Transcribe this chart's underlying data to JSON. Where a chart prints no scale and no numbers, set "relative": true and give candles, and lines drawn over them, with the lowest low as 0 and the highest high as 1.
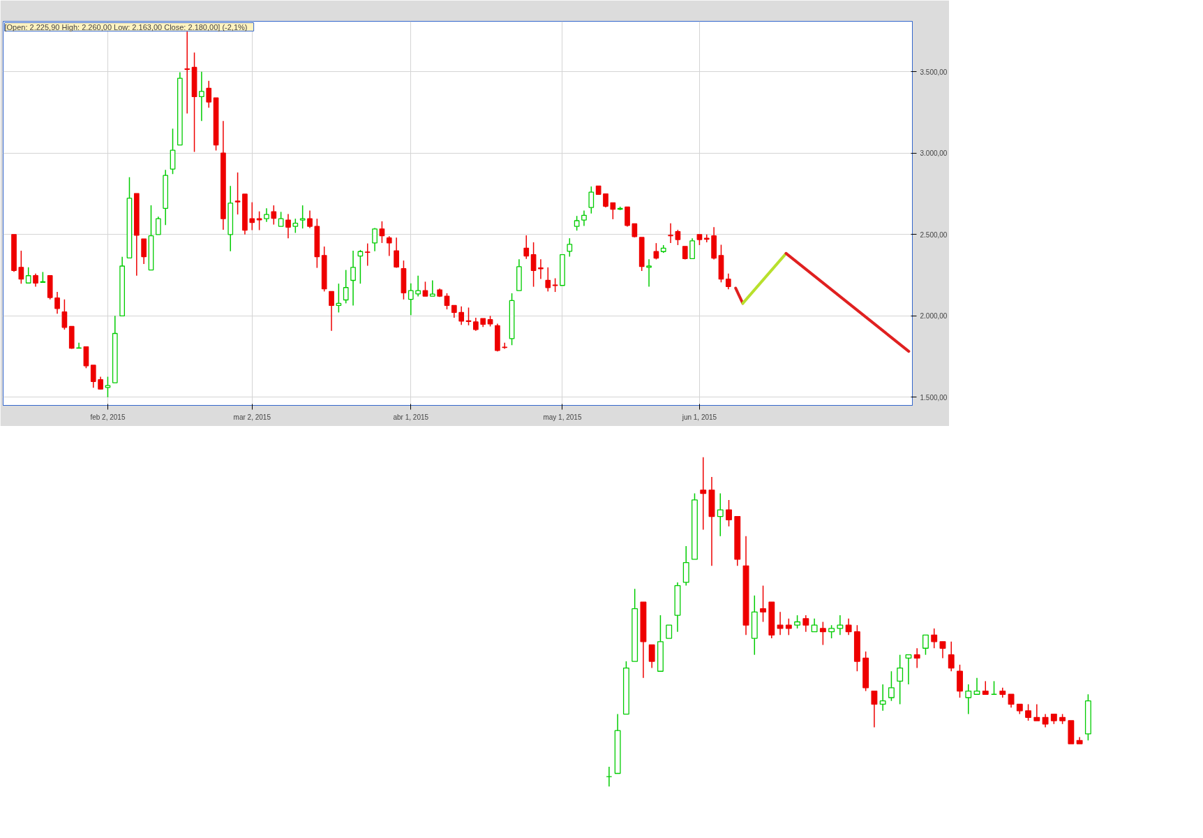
{
  "chart_data": [
    {
      "type": "candlestick",
      "annotations": [
        "[Open: 2.225,90  High: 2.260,00  Low: 2.163,00  Close: 2.180,00] (-2,1%)"
      ],
      "categories": [
        null,
        null,
        null,
        null,
        null,
        null,
        null,
        null,
        null,
        null,
        null,
        null,
        null,
        "feb 2, 2015",
        null,
        null,
        null,
        null,
        null,
        null,
        null,
        null,
        null,
        null,
        null,
        null,
        null,
        null,
        null,
        null,
        null,
        null,
        null,
        "mar 2, 2015",
        null,
        null,
        null,
        null,
        null,
        null,
        null,
        null,
        null,
        null,
        null,
        null,
        null,
        null,
        null,
        null,
        null,
        null,
        null,
        null,
        null,
        "abr 1, 2015",
        null,
        null,
        null,
        null,
        null,
        null,
        null,
        null,
        null,
        null,
        null,
        null,
        null,
        null,
        null,
        null,
        null,
        null,
        null,
        null,
        "may 1, 2015",
        null,
        null,
        null,
        null,
        null,
        null,
        null,
        null,
        null,
        null,
        null,
        null,
        null,
        null,
        null,
        null,
        null,
        null,
        "jun 1, 2015",
        null,
        null,
        null,
        null,
        null,
        null,
        null,
        null,
        null,
        null,
        null,
        null,
        null,
        null,
        null,
        null,
        null,
        null,
        null,
        null,
        null,
        null,
        null,
        null,
        null,
        null,
        null,
        null,
        null
      ],
      "ohlc": [
        [
          2500,
          2500,
          2271,
          2279
        ],
        [
          2298,
          2400,
          2198,
          2226
        ],
        [
          2202,
          2298,
          2202,
          2247
        ],
        [
          2247,
          2260,
          2179,
          2202
        ],
        [
          2206,
          2270,
          2206,
          2210
        ],
        [
          2247,
          2247,
          2101,
          2113
        ],
        [
          2110,
          2147,
          2013,
          2045
        ],
        [
          2024,
          2101,
          1916,
          1929
        ],
        [
          1935,
          1935,
          1798,
          1801
        ],
        [
          1801,
          1835,
          1801,
          1803
        ],
        [
          1810,
          1810,
          1678,
          1693
        ],
        [
          1697,
          1697,
          1558,
          1597
        ],
        [
          1608,
          1626,
          1550,
          1550
        ],
        [
          1560,
          1626,
          1500,
          1572
        ],
        [
          1589,
          2000,
          1589,
          1892
        ],
        [
          2000,
          2363,
          2000,
          2306
        ],
        [
          2356,
          2852,
          2356,
          2723
        ],
        [
          2752,
          2752,
          2247,
          2495
        ],
        [
          2473,
          2473,
          2319,
          2364
        ],
        [
          2282,
          2679,
          2282,
          2492
        ],
        [
          2500,
          2610,
          2500,
          2597
        ],
        [
          2661,
          2897,
          2558,
          2863
        ],
        [
          2902,
          3150,
          2871,
          3018
        ],
        [
          3050,
          3497,
          3050,
          3460
        ],
        [
          3518,
          3747,
          3244,
          3515
        ],
        [
          3527,
          3618,
          3008,
          3347
        ],
        [
          3347,
          3500,
          3198,
          3379
        ],
        [
          3398,
          3444,
          3279,
          3314
        ],
        [
          3339,
          3339,
          3016,
          3050
        ],
        [
          3000,
          3198,
          2529,
          2597
        ],
        [
          2500,
          2798,
          2397,
          2693
        ],
        [
          2705,
          2881,
          2623,
          2700
        ],
        [
          2748,
          2748,
          2500,
          2527
        ],
        [
          2597,
          2698,
          2527,
          2574
        ],
        [
          2597,
          2642,
          2527,
          2590
        ],
        [
          2597,
          2661,
          2577,
          2623
        ],
        [
          2640,
          2679,
          2561,
          2600
        ],
        [
          2550,
          2639,
          2550,
          2597
        ],
        [
          2589,
          2626,
          2477,
          2545
        ],
        [
          2550,
          2597,
          2510,
          2569
        ],
        [
          2589,
          2679,
          2537,
          2597
        ],
        [
          2597,
          2647,
          2540,
          2550
        ],
        [
          2550,
          2597,
          2295,
          2364
        ],
        [
          2371,
          2426,
          2150,
          2166
        ],
        [
          2150,
          2150,
          1908,
          2064
        ],
        [
          2064,
          2198,
          2021,
          2077
        ],
        [
          2098,
          2282,
          2077,
          2174
        ],
        [
          2218,
          2400,
          2064,
          2298
        ],
        [
          2368,
          2405,
          2198,
          2395
        ],
        [
          2392,
          2445,
          2308,
          2390
        ],
        [
          2448,
          2540,
          2397,
          2534
        ],
        [
          2534,
          2581,
          2448,
          2492
        ],
        [
          2479,
          2490,
          2368,
          2448
        ],
        [
          2400,
          2481,
          2295,
          2300
        ],
        [
          2290,
          2340,
          2101,
          2142
        ],
        [
          2102,
          2200,
          2005,
          2155
        ],
        [
          2135,
          2247,
          2119,
          2155
        ],
        [
          2155,
          2210,
          2121,
          2121
        ],
        [
          2121,
          2218,
          2121,
          2134
        ],
        [
          2160,
          2168,
          2116,
          2121
        ],
        [
          2121,
          2139,
          2040,
          2064
        ],
        [
          2064,
          2064,
          1989,
          2021
        ],
        [
          2021,
          2058,
          1945,
          1968
        ],
        [
          1970,
          2051,
          1942,
          1966
        ],
        [
          1963,
          1989,
          1908,
          1916
        ],
        [
          1984,
          1984,
          1932,
          1948
        ],
        [
          1977,
          2000,
          1935,
          1951
        ],
        [
          1940,
          1952,
          1782,
          1787
        ],
        [
          1808,
          1835,
          1798,
          1806
        ],
        [
          1860,
          2139,
          1820,
          2094
        ],
        [
          2155,
          2348,
          2155,
          2302
        ],
        [
          2416,
          2495,
          2350,
          2368
        ],
        [
          2376,
          2452,
          2179,
          2279
        ],
        [
          2295,
          2348,
          2227,
          2290
        ],
        [
          2218,
          2298,
          2150,
          2174
        ],
        [
          2190,
          2231,
          2147,
          2187
        ],
        [
          2187,
          2379,
          2187,
          2376
        ],
        [
          2397,
          2477,
          2364,
          2440
        ],
        [
          2550,
          2614,
          2524,
          2585
        ],
        [
          2589,
          2647,
          2553,
          2618
        ],
        [
          2666,
          2795,
          2629,
          2760
        ],
        [
          2798,
          2798,
          2747,
          2747
        ],
        [
          2750,
          2750,
          2666,
          2674
        ],
        [
          2695,
          2695,
          2594,
          2655
        ],
        [
          2655,
          2671,
          2650,
          2661
        ],
        [
          2669,
          2669,
          2548,
          2556
        ],
        [
          2566,
          2566,
          2482,
          2487
        ],
        [
          2482,
          2482,
          2276,
          2303
        ],
        [
          2298,
          2348,
          2179,
          2306
        ],
        [
          2395,
          2447,
          2347,
          2355
        ],
        [
          2395,
          2435,
          2387,
          2416
        ],
        [
          2495,
          2569,
          2448,
          2492
        ],
        [
          2518,
          2529,
          2435,
          2469
        ],
        [
          2427,
          2427,
          2347,
          2352
        ],
        [
          2352,
          2477,
          2352,
          2461
        ],
        [
          2500,
          2500,
          2435,
          2469
        ],
        [
          2477,
          2500,
          2452,
          2471
        ],
        [
          2492,
          2545,
          2347,
          2355
        ],
        [
          2371,
          2437,
          2206,
          2226
        ],
        [
          2225.9,
          2260,
          2163,
          2180
        ],
        null,
        null,
        null,
        null,
        null,
        null,
        null,
        null,
        null,
        null,
        null,
        null,
        null,
        null,
        null,
        null,
        null,
        null,
        null,
        null,
        null,
        null,
        null,
        null,
        null
      ],
      "colors": [
        "#ee0000",
        "#ee0000",
        "#00cc00",
        "#ee0000",
        "#00cc00",
        "#ee0000",
        "#ee0000",
        "#ee0000",
        "#ee0000",
        "#00cc00",
        "#ee0000",
        "#ee0000",
        "#ee0000",
        "#00cc00",
        "#00cc00",
        "#00cc00",
        "#00cc00",
        "#ee0000",
        "#ee0000",
        "#00cc00",
        "#00cc00",
        "#00cc00",
        "#00cc00",
        "#00cc00",
        "#ee0000",
        "#ee0000",
        "#00cc00",
        "#ee0000",
        "#ee0000",
        "#ee0000",
        "#00cc00",
        "#ee0000",
        "#ee0000",
        "#ee0000",
        "#ee0000",
        "#00cc00",
        "#ee0000",
        "#00cc00",
        "#ee0000",
        "#00cc00",
        "#00cc00",
        "#ee0000",
        "#ee0000",
        "#ee0000",
        "#ee0000",
        "#00cc00",
        "#00cc00",
        "#00cc00",
        "#00cc00",
        "#ee0000",
        "#00cc00",
        "#ee0000",
        "#ee0000",
        "#ee0000",
        "#ee0000",
        "#00cc00",
        "#00cc00",
        "#ee0000",
        "#00cc00",
        "#ee0000",
        "#ee0000",
        "#ee0000",
        "#ee0000",
        "#ee0000",
        "#ee0000",
        "#ee0000",
        "#ee0000",
        "#ee0000",
        "#ee0000",
        "#00cc00",
        "#00cc00",
        "#ee0000",
        "#ee0000",
        "#ee0000",
        "#ee0000",
        "#ee0000",
        "#00cc00",
        "#00cc00",
        "#00cc00",
        "#00cc00",
        "#00cc00",
        "#ee0000",
        "#ee0000",
        "#ee0000",
        "#00cc00",
        "#ee0000",
        "#ee0000",
        "#ee0000",
        "#00cc00",
        "#ee0000",
        "#00cc00",
        "#ee0000",
        "#ee0000",
        "#ee0000",
        "#00cc00",
        "#ee0000",
        "#ee0000",
        "#ee0000",
        "#ee0000",
        "#ee0000",
        null,
        null,
        null,
        null,
        null,
        null,
        null,
        null,
        null,
        null,
        null,
        null,
        null,
        null,
        null,
        null,
        null,
        null,
        null,
        null,
        null,
        null,
        null,
        null,
        null
      ],
      "series": [
        {
          "type": "line",
          "color": "#e02020",
          "values": [
            null,
            null,
            null,
            null,
            null,
            null,
            null,
            null,
            null,
            null,
            null,
            null,
            null,
            null,
            null,
            null,
            null,
            null,
            null,
            null,
            null,
            null,
            null,
            null,
            null,
            null,
            null,
            null,
            null,
            null,
            null,
            null,
            null,
            null,
            null,
            null,
            null,
            null,
            null,
            null,
            null,
            null,
            null,
            null,
            null,
            null,
            null,
            null,
            null,
            null,
            null,
            null,
            null,
            null,
            null,
            null,
            null,
            null,
            null,
            null,
            null,
            null,
            null,
            null,
            null,
            null,
            null,
            null,
            null,
            null,
            null,
            null,
            null,
            null,
            null,
            null,
            null,
            null,
            null,
            null,
            null,
            null,
            null,
            null,
            null,
            null,
            null,
            null,
            null,
            null,
            null,
            null,
            null,
            null,
            null,
            null,
            null,
            null,
            null,
            null,
            2171,
            2077,
            null,
            null,
            null,
            null,
            null,
            null,
            null,
            null,
            null,
            null,
            null,
            null,
            null,
            null,
            null,
            null,
            null,
            null,
            null,
            null,
            null,
            null,
            null
          ]
        },
        {
          "type": "line",
          "color": "#b8e02c",
          "values": [
            null,
            null,
            null,
            null,
            null,
            null,
            null,
            null,
            null,
            null,
            null,
            null,
            null,
            null,
            null,
            null,
            null,
            null,
            null,
            null,
            null,
            null,
            null,
            null,
            null,
            null,
            null,
            null,
            null,
            null,
            null,
            null,
            null,
            null,
            null,
            null,
            null,
            null,
            null,
            null,
            null,
            null,
            null,
            null,
            null,
            null,
            null,
            null,
            null,
            null,
            null,
            null,
            null,
            null,
            null,
            null,
            null,
            null,
            null,
            null,
            null,
            null,
            null,
            null,
            null,
            null,
            null,
            null,
            null,
            null,
            null,
            null,
            null,
            null,
            null,
            null,
            null,
            null,
            null,
            null,
            null,
            null,
            null,
            null,
            null,
            null,
            null,
            null,
            null,
            null,
            null,
            null,
            null,
            null,
            null,
            null,
            null,
            null,
            null,
            null,
            null,
            2077,
            null,
            null,
            null,
            null,
            null,
            2384,
            null,
            null,
            null,
            null,
            null,
            null,
            null,
            null,
            null,
            null,
            null,
            null,
            null,
            null,
            null,
            null,
            null
          ]
        },
        {
          "type": "line",
          "color": "#e02020",
          "values": [
            null,
            null,
            null,
            null,
            null,
            null,
            null,
            null,
            null,
            null,
            null,
            null,
            null,
            null,
            null,
            null,
            null,
            null,
            null,
            null,
            null,
            null,
            null,
            null,
            null,
            null,
            null,
            null,
            null,
            null,
            null,
            null,
            null,
            null,
            null,
            null,
            null,
            null,
            null,
            null,
            null,
            null,
            null,
            null,
            null,
            null,
            null,
            null,
            null,
            null,
            null,
            null,
            null,
            null,
            null,
            null,
            null,
            null,
            null,
            null,
            null,
            null,
            null,
            null,
            null,
            null,
            null,
            null,
            null,
            null,
            null,
            null,
            null,
            null,
            null,
            null,
            null,
            null,
            null,
            null,
            null,
            null,
            null,
            null,
            null,
            null,
            null,
            null,
            null,
            null,
            null,
            null,
            null,
            null,
            null,
            null,
            null,
            null,
            null,
            null,
            null,
            null,
            null,
            null,
            null,
            null,
            null,
            2384,
            null,
            null,
            null,
            null,
            null,
            null,
            null,
            null,
            null,
            null,
            null,
            null,
            null,
            null,
            null,
            null,
            1782
          ]
        }
      ],
      "ylim": [
        1450,
        3810
      ],
      "yticks": [
        {
          "value": 1500,
          "label": "1.500,00"
        },
        {
          "value": 2000,
          "label": "2.000,00"
        },
        {
          "value": 2500,
          "label": "2.500,00"
        },
        {
          "value": 3000,
          "label": "3.000,00"
        },
        {
          "value": 3500,
          "label": "3.500,00"
        }
      ],
      "grid": true
    },
    {
      "type": "candlestick",
      "relative": true,
      "tick_labels": false,
      "categories": [
        null,
        null,
        null,
        null,
        null,
        null,
        null,
        null,
        null,
        null,
        null,
        null,
        null,
        null,
        null,
        null,
        null,
        null,
        null,
        null,
        null,
        null,
        null,
        null,
        null,
        null,
        null,
        null,
        null,
        null,
        null,
        null,
        null,
        null,
        null,
        null,
        null,
        null,
        null,
        null,
        null,
        null,
        null,
        null,
        null,
        null,
        null,
        null,
        null,
        null,
        null,
        null,
        null,
        null,
        null,
        null,
        null
      ],
      "ohlc": [
        [
          0.03,
          0.06,
          0,
          0.03
        ],
        [
          0.04,
          0.22,
          0.04,
          0.17
        ],
        [
          0.22,
          0.38,
          0.22,
          0.36
        ],
        [
          0.38,
          0.6,
          0.38,
          0.54
        ],
        [
          0.56,
          0.56,
          0.33,
          0.44
        ],
        [
          0.43,
          0.43,
          0.36,
          0.38
        ],
        [
          0.35,
          0.52,
          0.35,
          0.44
        ],
        [
          0.45,
          0.49,
          0.45,
          0.49
        ],
        [
          0.52,
          0.62,
          0.47,
          0.61
        ],
        [
          0.62,
          0.73,
          0.61,
          0.68
        ],
        [
          0.69,
          0.89,
          0.69,
          0.87
        ],
        [
          0.9,
          1,
          0.78,
          0.89
        ],
        [
          0.9,
          0.94,
          0.67,
          0.82
        ],
        [
          0.82,
          0.89,
          0.76,
          0.84
        ],
        [
          0.84,
          0.87,
          0.79,
          0.81
        ],
        [
          0.82,
          0.82,
          0.67,
          0.69
        ],
        [
          0.67,
          0.76,
          0.46,
          0.49
        ],
        [
          0.45,
          0.58,
          0.4,
          0.53
        ],
        [
          0.54,
          0.61,
          0.5,
          0.53
        ],
        [
          0.56,
          0.56,
          0.45,
          0.46
        ],
        [
          0.49,
          0.53,
          0.46,
          0.48
        ],
        [
          0.49,
          0.51,
          0.46,
          0.48
        ],
        [
          0.49,
          0.52,
          0.48,
          0.5
        ],
        [
          0.51,
          0.52,
          0.47,
          0.49
        ],
        [
          0.47,
          0.51,
          0.47,
          0.49
        ],
        [
          0.48,
          0.5,
          0.43,
          0.47
        ],
        [
          0.47,
          0.49,
          0.45,
          0.48
        ],
        [
          0.48,
          0.52,
          0.46,
          0.49
        ],
        [
          0.49,
          0.51,
          0.46,
          0.47
        ],
        [
          0.47,
          0.49,
          0.35,
          0.38
        ],
        [
          0.39,
          0.41,
          0.29,
          0.3
        ],
        [
          0.29,
          0.29,
          0.18,
          0.25
        ],
        [
          0.25,
          0.31,
          0.23,
          0.26
        ],
        [
          0.27,
          0.35,
          0.26,
          0.3
        ],
        [
          0.32,
          0.4,
          0.25,
          0.36
        ],
        [
          0.39,
          0.4,
          0.31,
          0.4
        ],
        [
          0.4,
          0.42,
          0.36,
          0.39
        ],
        [
          0.42,
          0.46,
          0.4,
          0.46
        ],
        [
          0.46,
          0.48,
          0.42,
          0.44
        ],
        [
          0.44,
          0.44,
          0.39,
          0.42
        ],
        [
          0.4,
          0.44,
          0.35,
          0.36
        ],
        [
          0.35,
          0.37,
          0.27,
          0.29
        ],
        [
          0.27,
          0.31,
          0.22,
          0.29
        ],
        [
          0.28,
          0.33,
          0.28,
          0.29
        ],
        [
          0.29,
          0.32,
          0.28,
          0.28
        ],
        [
          0.28,
          0.32,
          0.28,
          0.28
        ],
        [
          0.29,
          0.3,
          0.27,
          0.28
        ],
        [
          0.28,
          0.28,
          0.24,
          0.25
        ],
        [
          0.25,
          0.25,
          0.22,
          0.23
        ],
        [
          0.23,
          0.25,
          0.2,
          0.21
        ],
        [
          0.21,
          0.25,
          0.2,
          0.2
        ],
        [
          0.21,
          0.22,
          0.18,
          0.19
        ],
        [
          0.22,
          0.22,
          0.19,
          0.2
        ],
        [
          0.21,
          0.22,
          0.19,
          0.2
        ],
        [
          0.2,
          0.2,
          0.13,
          0.13
        ],
        [
          0.14,
          0.15,
          0.13,
          0.13
        ],
        [
          0.16,
          0.28,
          0.14,
          0.26
        ]
      ],
      "colors": [
        "#00cc00",
        "#00cc00",
        "#00cc00",
        "#00cc00",
        "#ee0000",
        "#ee0000",
        "#00cc00",
        "#00cc00",
        "#00cc00",
        "#00cc00",
        "#00cc00",
        "#ee0000",
        "#ee0000",
        "#00cc00",
        "#ee0000",
        "#ee0000",
        "#ee0000",
        "#00cc00",
        "#ee0000",
        "#ee0000",
        "#ee0000",
        "#ee0000",
        "#00cc00",
        "#ee0000",
        "#00cc00",
        "#ee0000",
        "#00cc00",
        "#00cc00",
        "#ee0000",
        "#ee0000",
        "#ee0000",
        "#ee0000",
        "#00cc00",
        "#00cc00",
        "#00cc00",
        "#00cc00",
        "#ee0000",
        "#00cc00",
        "#ee0000",
        "#ee0000",
        "#ee0000",
        "#ee0000",
        "#00cc00",
        "#00cc00",
        "#ee0000",
        "#00cc00",
        "#ee0000",
        "#ee0000",
        "#ee0000",
        "#ee0000",
        "#ee0000",
        "#ee0000",
        "#ee0000",
        "#ee0000",
        "#ee0000",
        "#ee0000",
        "#00cc00"
      ]
    }
  ]
}
